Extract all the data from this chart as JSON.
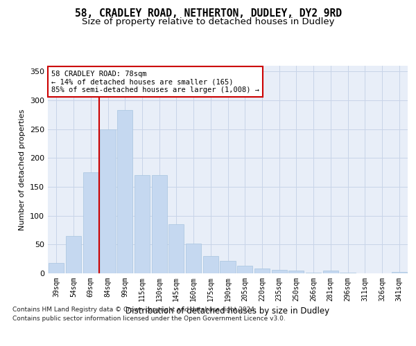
{
  "title_line1": "58, CRADLEY ROAD, NETHERTON, DUDLEY, DY2 9RD",
  "title_line2": "Size of property relative to detached houses in Dudley",
  "xlabel": "Distribution of detached houses by size in Dudley",
  "ylabel": "Number of detached properties",
  "categories": [
    "39sqm",
    "54sqm",
    "69sqm",
    "84sqm",
    "99sqm",
    "115sqm",
    "130sqm",
    "145sqm",
    "160sqm",
    "175sqm",
    "190sqm",
    "205sqm",
    "220sqm",
    "235sqm",
    "250sqm",
    "266sqm",
    "281sqm",
    "296sqm",
    "311sqm",
    "326sqm",
    "341sqm"
  ],
  "values": [
    18,
    65,
    175,
    250,
    283,
    170,
    170,
    85,
    52,
    30,
    22,
    13,
    8,
    6,
    5,
    1,
    5,
    1,
    0,
    0,
    2
  ],
  "bar_color": "#c5d8f0",
  "bar_edge_color": "#a8c4e0",
  "vline_color": "#cc0000",
  "vline_x": 2.5,
  "annotation_text": "58 CRADLEY ROAD: 78sqm\n← 14% of detached houses are smaller (165)\n85% of semi-detached houses are larger (1,008) →",
  "annotation_box_facecolor": "#ffffff",
  "annotation_box_edgecolor": "#cc0000",
  "ylim": [
    0,
    360
  ],
  "yticks": [
    0,
    50,
    100,
    150,
    200,
    250,
    300,
    350
  ],
  "grid_color": "#c8d4e8",
  "background_color": "#e8eef8",
  "footnote_line1": "Contains HM Land Registry data © Crown copyright and database right 2024.",
  "footnote_line2": "Contains public sector information licensed under the Open Government Licence v3.0."
}
